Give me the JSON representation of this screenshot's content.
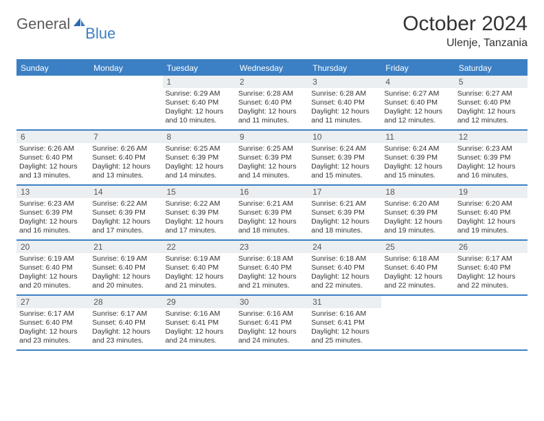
{
  "brand": {
    "text_gray": "General",
    "text_blue": "Blue"
  },
  "title": "October 2024",
  "location": "Ulenje, Tanzania",
  "colors": {
    "header_bg": "#3b7fc4",
    "daynum_bg": "#eceff1",
    "border": "#3b7fc4",
    "text": "#333333",
    "brand_gray": "#5a5a5a",
    "brand_blue": "#3b7fc4"
  },
  "day_labels": [
    "Sunday",
    "Monday",
    "Tuesday",
    "Wednesday",
    "Thursday",
    "Friday",
    "Saturday"
  ],
  "weeks": [
    [
      {
        "n": "",
        "sr": "",
        "ss": "",
        "dl": ""
      },
      {
        "n": "",
        "sr": "",
        "ss": "",
        "dl": ""
      },
      {
        "n": "1",
        "sr": "Sunrise: 6:29 AM",
        "ss": "Sunset: 6:40 PM",
        "dl": "Daylight: 12 hours and 10 minutes."
      },
      {
        "n": "2",
        "sr": "Sunrise: 6:28 AM",
        "ss": "Sunset: 6:40 PM",
        "dl": "Daylight: 12 hours and 11 minutes."
      },
      {
        "n": "3",
        "sr": "Sunrise: 6:28 AM",
        "ss": "Sunset: 6:40 PM",
        "dl": "Daylight: 12 hours and 11 minutes."
      },
      {
        "n": "4",
        "sr": "Sunrise: 6:27 AM",
        "ss": "Sunset: 6:40 PM",
        "dl": "Daylight: 12 hours and 12 minutes."
      },
      {
        "n": "5",
        "sr": "Sunrise: 6:27 AM",
        "ss": "Sunset: 6:40 PM",
        "dl": "Daylight: 12 hours and 12 minutes."
      }
    ],
    [
      {
        "n": "6",
        "sr": "Sunrise: 6:26 AM",
        "ss": "Sunset: 6:40 PM",
        "dl": "Daylight: 12 hours and 13 minutes."
      },
      {
        "n": "7",
        "sr": "Sunrise: 6:26 AM",
        "ss": "Sunset: 6:40 PM",
        "dl": "Daylight: 12 hours and 13 minutes."
      },
      {
        "n": "8",
        "sr": "Sunrise: 6:25 AM",
        "ss": "Sunset: 6:39 PM",
        "dl": "Daylight: 12 hours and 14 minutes."
      },
      {
        "n": "9",
        "sr": "Sunrise: 6:25 AM",
        "ss": "Sunset: 6:39 PM",
        "dl": "Daylight: 12 hours and 14 minutes."
      },
      {
        "n": "10",
        "sr": "Sunrise: 6:24 AM",
        "ss": "Sunset: 6:39 PM",
        "dl": "Daylight: 12 hours and 15 minutes."
      },
      {
        "n": "11",
        "sr": "Sunrise: 6:24 AM",
        "ss": "Sunset: 6:39 PM",
        "dl": "Daylight: 12 hours and 15 minutes."
      },
      {
        "n": "12",
        "sr": "Sunrise: 6:23 AM",
        "ss": "Sunset: 6:39 PM",
        "dl": "Daylight: 12 hours and 16 minutes."
      }
    ],
    [
      {
        "n": "13",
        "sr": "Sunrise: 6:23 AM",
        "ss": "Sunset: 6:39 PM",
        "dl": "Daylight: 12 hours and 16 minutes."
      },
      {
        "n": "14",
        "sr": "Sunrise: 6:22 AM",
        "ss": "Sunset: 6:39 PM",
        "dl": "Daylight: 12 hours and 17 minutes."
      },
      {
        "n": "15",
        "sr": "Sunrise: 6:22 AM",
        "ss": "Sunset: 6:39 PM",
        "dl": "Daylight: 12 hours and 17 minutes."
      },
      {
        "n": "16",
        "sr": "Sunrise: 6:21 AM",
        "ss": "Sunset: 6:39 PM",
        "dl": "Daylight: 12 hours and 18 minutes."
      },
      {
        "n": "17",
        "sr": "Sunrise: 6:21 AM",
        "ss": "Sunset: 6:39 PM",
        "dl": "Daylight: 12 hours and 18 minutes."
      },
      {
        "n": "18",
        "sr": "Sunrise: 6:20 AM",
        "ss": "Sunset: 6:39 PM",
        "dl": "Daylight: 12 hours and 19 minutes."
      },
      {
        "n": "19",
        "sr": "Sunrise: 6:20 AM",
        "ss": "Sunset: 6:40 PM",
        "dl": "Daylight: 12 hours and 19 minutes."
      }
    ],
    [
      {
        "n": "20",
        "sr": "Sunrise: 6:19 AM",
        "ss": "Sunset: 6:40 PM",
        "dl": "Daylight: 12 hours and 20 minutes."
      },
      {
        "n": "21",
        "sr": "Sunrise: 6:19 AM",
        "ss": "Sunset: 6:40 PM",
        "dl": "Daylight: 12 hours and 20 minutes."
      },
      {
        "n": "22",
        "sr": "Sunrise: 6:19 AM",
        "ss": "Sunset: 6:40 PM",
        "dl": "Daylight: 12 hours and 21 minutes."
      },
      {
        "n": "23",
        "sr": "Sunrise: 6:18 AM",
        "ss": "Sunset: 6:40 PM",
        "dl": "Daylight: 12 hours and 21 minutes."
      },
      {
        "n": "24",
        "sr": "Sunrise: 6:18 AM",
        "ss": "Sunset: 6:40 PM",
        "dl": "Daylight: 12 hours and 22 minutes."
      },
      {
        "n": "25",
        "sr": "Sunrise: 6:18 AM",
        "ss": "Sunset: 6:40 PM",
        "dl": "Daylight: 12 hours and 22 minutes."
      },
      {
        "n": "26",
        "sr": "Sunrise: 6:17 AM",
        "ss": "Sunset: 6:40 PM",
        "dl": "Daylight: 12 hours and 22 minutes."
      }
    ],
    [
      {
        "n": "27",
        "sr": "Sunrise: 6:17 AM",
        "ss": "Sunset: 6:40 PM",
        "dl": "Daylight: 12 hours and 23 minutes."
      },
      {
        "n": "28",
        "sr": "Sunrise: 6:17 AM",
        "ss": "Sunset: 6:40 PM",
        "dl": "Daylight: 12 hours and 23 minutes."
      },
      {
        "n": "29",
        "sr": "Sunrise: 6:16 AM",
        "ss": "Sunset: 6:41 PM",
        "dl": "Daylight: 12 hours and 24 minutes."
      },
      {
        "n": "30",
        "sr": "Sunrise: 6:16 AM",
        "ss": "Sunset: 6:41 PM",
        "dl": "Daylight: 12 hours and 24 minutes."
      },
      {
        "n": "31",
        "sr": "Sunrise: 6:16 AM",
        "ss": "Sunset: 6:41 PM",
        "dl": "Daylight: 12 hours and 25 minutes."
      },
      {
        "n": "",
        "sr": "",
        "ss": "",
        "dl": ""
      },
      {
        "n": "",
        "sr": "",
        "ss": "",
        "dl": ""
      }
    ]
  ]
}
